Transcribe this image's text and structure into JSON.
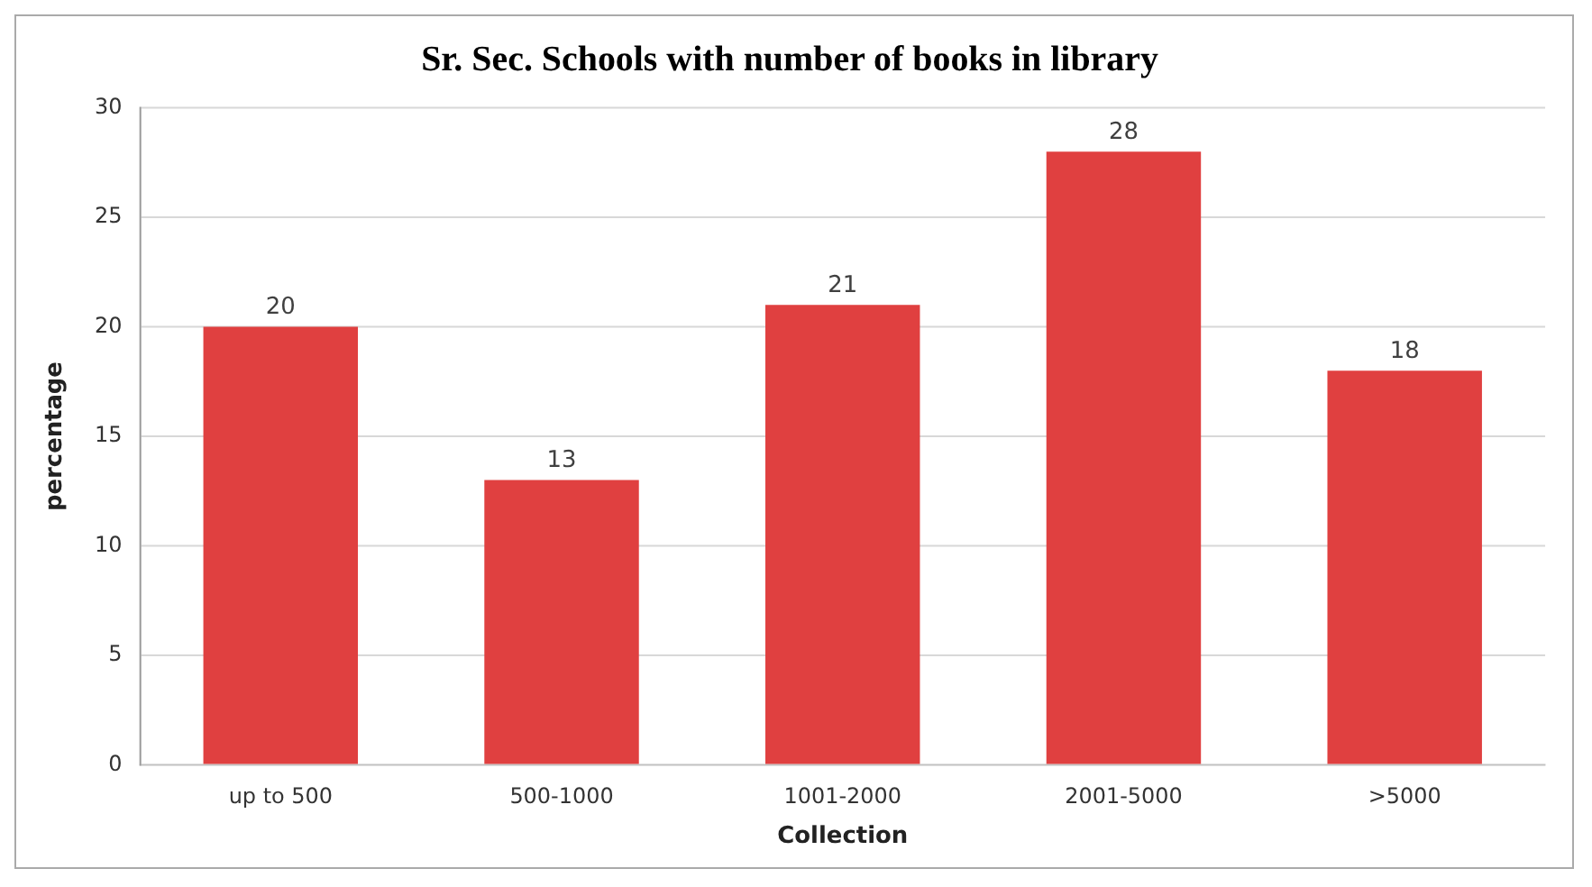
{
  "chart_data": {
    "type": "bar",
    "title": "Sr. Sec. Schools with number of books in library",
    "xlabel": "Collection",
    "ylabel": "percentage",
    "categories": [
      "up to 500",
      "500-1000",
      "1001-2000",
      "2001-5000",
      ">5000"
    ],
    "values": [
      20,
      13,
      21,
      28,
      18
    ],
    "color": "#e04040",
    "ylim": [
      0,
      30
    ],
    "yticks": [
      0,
      5,
      10,
      15,
      20,
      25,
      30
    ],
    "grid": "y",
    "data_labels": true
  }
}
